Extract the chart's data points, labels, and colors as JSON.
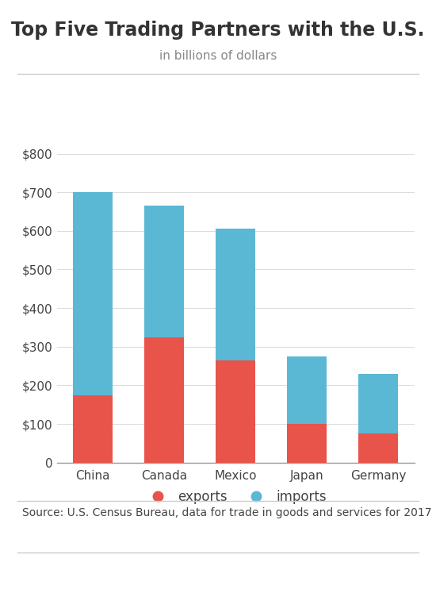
{
  "title": "Top Five Trading Partners with the U.S.",
  "subtitle": "in billions of dollars",
  "categories": [
    "China",
    "Canada",
    "Mexico",
    "Japan",
    "Germany"
  ],
  "exports": [
    175,
    325,
    265,
    100,
    75
  ],
  "imports": [
    525,
    340,
    340,
    175,
    155
  ],
  "export_color": "#E8534A",
  "import_color": "#5BB8D4",
  "yticks": [
    0,
    100,
    200,
    300,
    400,
    500,
    600,
    700,
    800
  ],
  "ylim": [
    0,
    860
  ],
  "source_text": "Source: U.S. Census Bureau, data for trade in goods and services for 2017",
  "legend_exports": "exports",
  "legend_imports": "imports",
  "background_color": "#ffffff",
  "bar_width": 0.55,
  "title_fontsize": 17,
  "subtitle_fontsize": 11,
  "tick_fontsize": 11,
  "source_fontsize": 10,
  "axis_color": "#555555",
  "grid_color": "#dddddd",
  "text_color": "#444444"
}
